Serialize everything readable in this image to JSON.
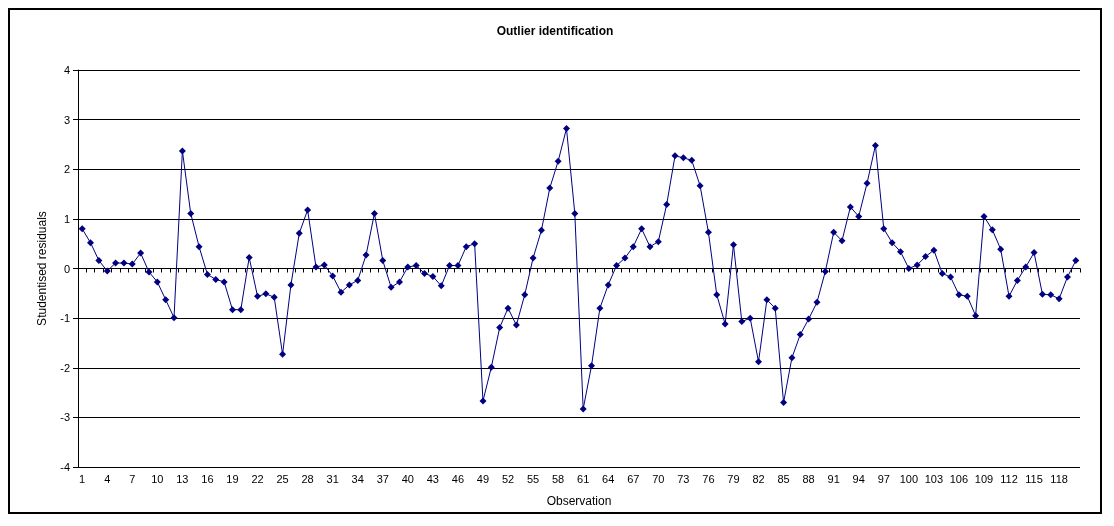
{
  "chart_data": {
    "type": "line",
    "title": "Outlier identification",
    "xlabel": "Observation",
    "ylabel": "Studentised residuals",
    "categories": [
      "1",
      null,
      null,
      "4",
      null,
      null,
      "7",
      null,
      null,
      "10",
      null,
      null,
      "13",
      null,
      null,
      "16",
      null,
      null,
      "19",
      null,
      null,
      "22",
      null,
      null,
      "25",
      null,
      null,
      "28",
      null,
      null,
      "31",
      null,
      null,
      "34",
      null,
      null,
      "37",
      null,
      null,
      "40",
      null,
      null,
      "43",
      null,
      null,
      "46",
      null,
      null,
      "49",
      null,
      null,
      "52",
      null,
      null,
      "55",
      null,
      null,
      "58",
      null,
      null,
      "61",
      null,
      null,
      "64",
      null,
      null,
      "67",
      null,
      null,
      "70",
      null,
      null,
      "73",
      null,
      null,
      "76",
      null,
      null,
      "79",
      null,
      null,
      "82",
      null,
      null,
      "85",
      null,
      null,
      "88",
      null,
      null,
      "91",
      null,
      null,
      "94",
      null,
      null,
      "97",
      null,
      null,
      "100",
      null,
      null,
      "103",
      null,
      null,
      "106",
      null,
      null,
      "109",
      null,
      null,
      "112",
      null,
      null,
      "115",
      null,
      null,
      "118",
      null,
      null
    ],
    "series": [
      {
        "color": "#000080",
        "values": [
          0.8,
          0.52,
          0.16,
          -0.05,
          0.11,
          0.11,
          0.09,
          0.31,
          -0.07,
          -0.27,
          -0.63,
          -0.99,
          2.37,
          1.11,
          0.44,
          -0.12,
          -0.22,
          -0.27,
          -0.83,
          -0.83,
          0.22,
          -0.56,
          -0.51,
          -0.58,
          -1.73,
          -0.33,
          0.71,
          1.18,
          0.03,
          0.07,
          -0.15,
          -0.48,
          -0.33,
          -0.24,
          0.27,
          1.11,
          0.16,
          -0.38,
          -0.27,
          0.03,
          0.06,
          -0.1,
          -0.16,
          -0.35,
          0.06,
          0.06,
          0.44,
          0.5,
          -2.67,
          -1.99,
          -1.19,
          -0.8,
          -1.14,
          -0.53,
          0.21,
          0.77,
          1.62,
          2.16,
          2.82,
          1.11,
          -2.83,
          -1.96,
          -0.8,
          -0.33,
          0.06,
          0.21,
          0.44,
          0.8,
          0.44,
          0.54,
          1.29,
          2.27,
          2.23,
          2.18,
          1.67,
          0.73,
          -0.53,
          -1.12,
          0.48,
          -1.07,
          -1.0,
          -1.88,
          -0.63,
          -0.8,
          -2.7,
          -1.8,
          -1.33,
          -1.02,
          -0.68,
          -0.06,
          0.73,
          0.56,
          1.24,
          1.05,
          1.72,
          2.48,
          0.8,
          0.52,
          0.34,
          0.0,
          0.07,
          0.24,
          0.37,
          -0.1,
          -0.17,
          -0.53,
          -0.56,
          -0.95,
          1.05,
          0.78,
          0.39,
          -0.56,
          -0.24,
          0.03,
          0.32,
          -0.52,
          -0.53,
          -0.61,
          -0.17,
          0.16
        ]
      }
    ],
    "ylim": [
      -4,
      4
    ],
    "yticks": [
      -4,
      -3,
      -2,
      -1,
      0,
      1,
      2,
      3,
      4
    ],
    "grid": "y",
    "marker": "diamond",
    "line_style": "solid"
  }
}
